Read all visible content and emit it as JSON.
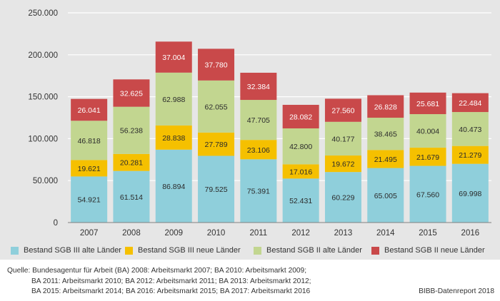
{
  "chart_data": {
    "type": "bar",
    "stacked": true,
    "categories": [
      "2007",
      "2008",
      "2009",
      "2010",
      "2011",
      "2012",
      "2013",
      "2014",
      "2015",
      "2016"
    ],
    "series": [
      {
        "name": "Bestand SGB III alte Länder",
        "color": "#8fcfdb",
        "values": [
          54921,
          61514,
          86894,
          79525,
          75391,
          52431,
          60229,
          65005,
          67560,
          69998
        ],
        "labels": [
          "54.921",
          "61.514",
          "86.894",
          "79.525",
          "75.391",
          "52.431",
          "60.229",
          "65.005",
          "67.560",
          "69.998"
        ],
        "label_color": "#2b2b2b"
      },
      {
        "name": "Bestand SGB III neue Länder",
        "color": "#f5c000",
        "values": [
          19621,
          20281,
          28838,
          27789,
          23106,
          17016,
          19672,
          21495,
          21679,
          21279
        ],
        "labels": [
          "19.621",
          "20.281",
          "28.838",
          "27.789",
          "23.106",
          "17.016",
          "19.672",
          "21.495",
          "21.679",
          "21.279"
        ],
        "label_color": "#2b2b2b"
      },
      {
        "name": "Bestand SGB II alte Länder",
        "color": "#c2d690",
        "values": [
          46818,
          56238,
          62988,
          62055,
          47705,
          42800,
          40177,
          38465,
          40004,
          40473
        ],
        "labels": [
          "46.818",
          "56.238",
          "62.988",
          "62.055",
          "47.705",
          "42.800",
          "40.177",
          "38.465",
          "40.004",
          "40.473"
        ],
        "label_color": "#2b2b2b"
      },
      {
        "name": "Bestand SGB II neue Länder",
        "color": "#c9494a",
        "values": [
          26041,
          32625,
          37004,
          37780,
          32384,
          28082,
          27560,
          26828,
          25681,
          22484
        ],
        "labels": [
          "26.041",
          "32.625",
          "37.004",
          "37.780",
          "32.384",
          "28.082",
          "27.560",
          "26.828",
          "25.681",
          "22.484"
        ],
        "label_color": "#ffffff"
      }
    ],
    "ylim": [
      0,
      250000
    ],
    "yticks": [
      0,
      50000,
      100000,
      150000,
      200000,
      250000
    ],
    "ytick_labels": [
      "0",
      "50.000",
      "100.000",
      "150.000",
      "200.000",
      "250.000"
    ],
    "grid": true,
    "legend_position": "bottom",
    "xlabel": "",
    "ylabel": ""
  },
  "source": {
    "lines": [
      "Quelle: Bundesagentur für Arbeit (BA) 2008: Arbeitsmarkt 2007; BA 2010: Arbeitsmarkt 2009;",
      "BA 2011: Arbeitsmarkt 2010; BA 2012: Arbeitsmarkt 2011; BA 2013: Arbeitsmarkt 2012;",
      "BA 2015: Arbeitsmarkt 2014; BA 2016: Arbeitsmarkt 2015; BA 2017: Arbeitsmarkt 2016"
    ]
  },
  "credit": "BIBB-Datenreport 2018"
}
